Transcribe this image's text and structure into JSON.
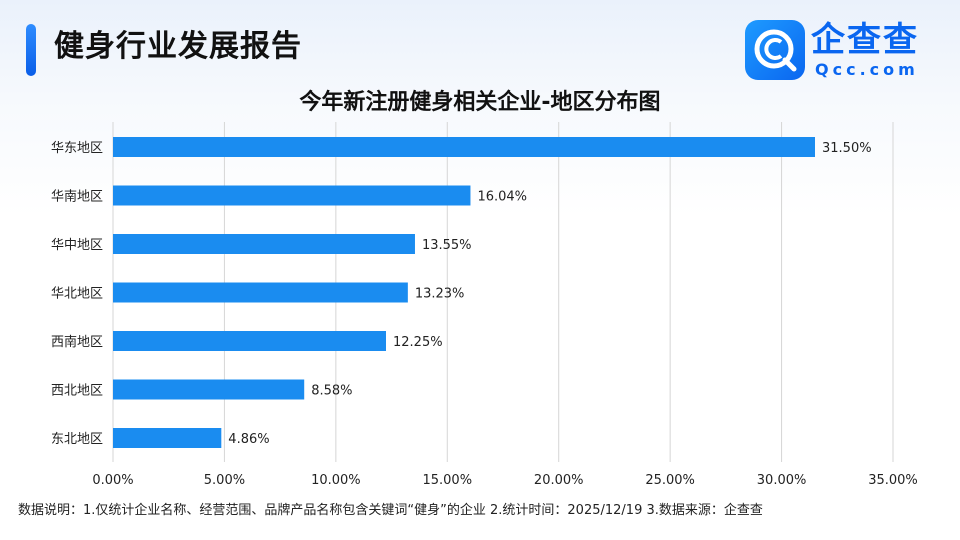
{
  "header": {
    "report_title": "健身行业发展报告",
    "logo_text": "企查查",
    "logo_domain": "Qcc.com"
  },
  "colors": {
    "bar": "#1a8cf0",
    "accent": "#0a66f0",
    "grid": "#d6d6d6"
  },
  "chart_data": {
    "type": "bar",
    "orientation": "horizontal",
    "title": "今年新注册健身相关企业-地区分布图",
    "categories": [
      "华东地区",
      "华南地区",
      "华中地区",
      "华北地区",
      "西南地区",
      "西北地区",
      "东北地区"
    ],
    "values": [
      31.5,
      16.04,
      13.55,
      13.23,
      12.25,
      8.58,
      4.86
    ],
    "value_labels": [
      "31.50%",
      "16.04%",
      "13.55%",
      "13.23%",
      "12.25%",
      "8.58%",
      "4.86%"
    ],
    "x_ticks": [
      0,
      5,
      10,
      15,
      20,
      25,
      30,
      35
    ],
    "x_tick_labels": [
      "0.00%",
      "5.00%",
      "10.00%",
      "15.00%",
      "20.00%",
      "25.00%",
      "30.00%",
      "35.00%"
    ],
    "xlim": [
      0,
      35
    ],
    "grid": "vertical",
    "legend": "none"
  },
  "footnote": "数据说明：1.仅统计企业名称、经营范围、品牌产品名称包含关键词“健身”的企业   2.统计时间：2025/12/19   3.数据来源：企查查"
}
